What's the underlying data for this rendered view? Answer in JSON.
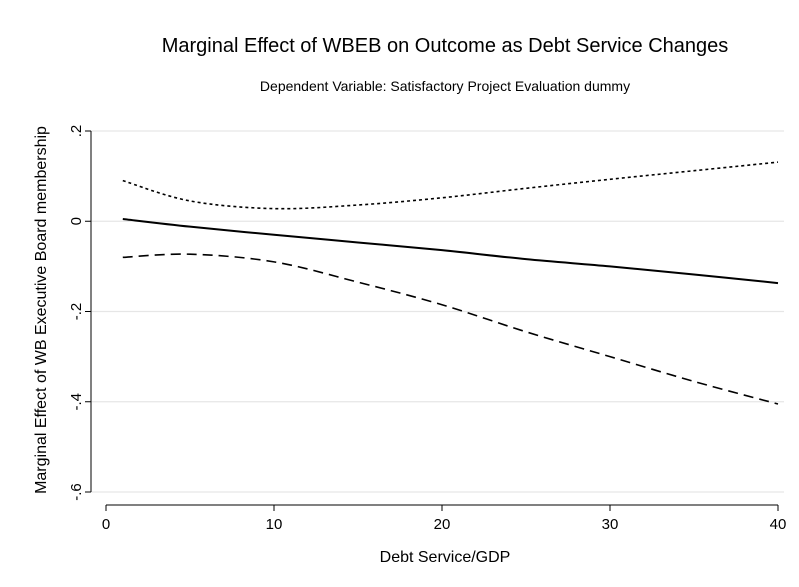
{
  "chart_data": {
    "type": "line",
    "title": "Marginal Effect of WBEB on Outcome as Debt Service Changes",
    "subtitle": "Dependent Variable: Satisfactory Project Evaluation dummy",
    "xlabel": "Debt Service/GDP",
    "ylabel": "Marginal Effect of WB Executive Board membership",
    "xlim": [
      0,
      40
    ],
    "ylim": [
      -0.6,
      0.2
    ],
    "xticks": [
      0,
      10,
      20,
      30,
      40
    ],
    "xtick_labels": [
      "0",
      "10",
      "20",
      "30",
      "40"
    ],
    "yticks": [
      -0.6,
      -0.4,
      -0.2,
      0,
      0.2
    ],
    "ytick_labels": [
      "-.6",
      "-.4",
      "-.2",
      "0",
      ".2"
    ],
    "grid": true,
    "legend": "none",
    "x": [
      1,
      5,
      10,
      15,
      20,
      25,
      30,
      35,
      40
    ],
    "series": [
      {
        "style": "solid",
        "values": [
          0.005,
          -0.012,
          -0.03,
          -0.047,
          -0.064,
          -0.084,
          -0.1,
          -0.118,
          -0.137
        ]
      },
      {
        "style": "dotted",
        "values": [
          0.09,
          0.045,
          0.028,
          0.036,
          0.052,
          0.073,
          0.093,
          0.112,
          0.131
        ]
      },
      {
        "style": "dashed",
        "values": [
          -0.08,
          -0.073,
          -0.09,
          -0.135,
          -0.185,
          -0.245,
          -0.3,
          -0.355,
          -0.405
        ]
      }
    ]
  }
}
